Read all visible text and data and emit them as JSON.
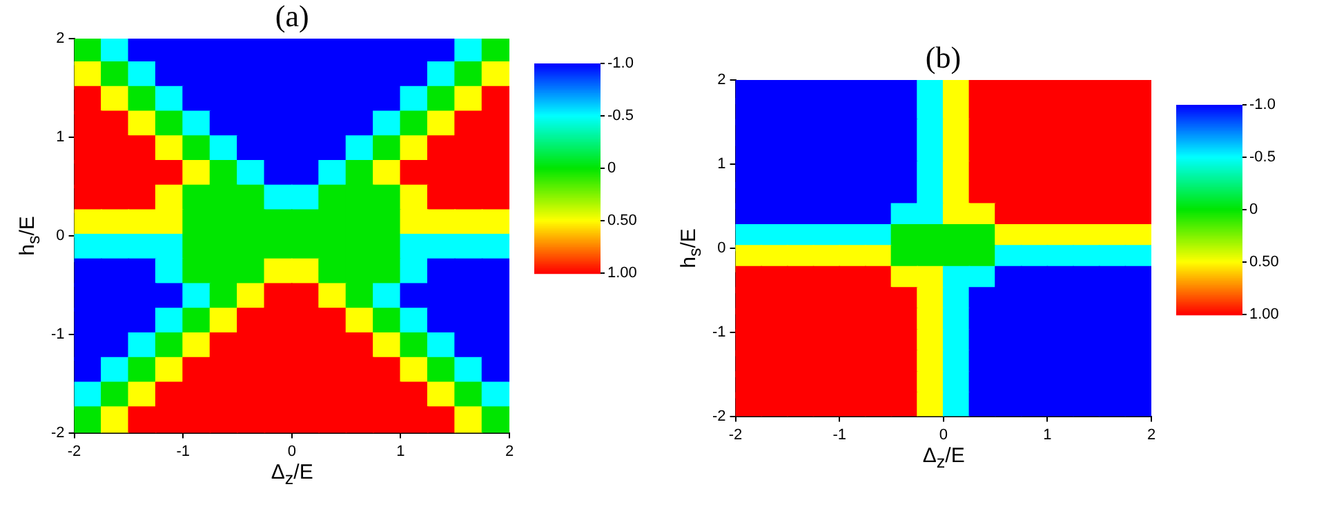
{
  "chart_data": [
    {
      "type": "heatmap",
      "title": "(a)",
      "xlabel": "Δ$_{z}$/E",
      "ylabel": "h$_{s}$/E",
      "x": [
        -1.875,
        -1.625,
        -1.375,
        -1.125,
        -0.875,
        -0.625,
        -0.375,
        -0.125,
        0.125,
        0.375,
        0.625,
        0.875,
        1.125,
        1.375,
        1.625,
        1.875
      ],
      "y": [
        1.875,
        1.625,
        1.375,
        1.125,
        0.875,
        0.625,
        0.375,
        0.125,
        -0.125,
        -0.375,
        -0.625,
        -0.875,
        -1.125,
        -1.375,
        -1.625,
        -1.875
      ],
      "xlim": [
        -2,
        2
      ],
      "ylim": [
        -2,
        2
      ],
      "xticks": [
        -2,
        -1,
        0,
        1,
        2
      ],
      "yticks": [
        -2,
        -1,
        0,
        1,
        2
      ],
      "grid": false,
      "clim": [
        -1,
        1
      ],
      "cticks": [
        {
          "value": -1,
          "label": "-1.0"
        },
        {
          "value": -0.5,
          "label": "-0.5"
        },
        0,
        {
          "value": 0.5,
          "label": "0.50"
        },
        {
          "value": 1,
          "label": "1.00"
        }
      ],
      "cells": [
        [
          0,
          -0.5,
          -1,
          -1,
          -1,
          -1,
          -1,
          -1,
          -1,
          -1,
          -1,
          -1,
          -1,
          -1,
          -0.5,
          0
        ],
        [
          0.5,
          0,
          -0.5,
          -1,
          -1,
          -1,
          -1,
          -1,
          -1,
          -1,
          -1,
          -1,
          -1,
          -0.5,
          0,
          0.5
        ],
        [
          1,
          0.5,
          0,
          -0.5,
          -1,
          -1,
          -1,
          -1,
          -1,
          -1,
          -1,
          -1,
          -0.5,
          0,
          0.5,
          1
        ],
        [
          1,
          1,
          0.5,
          0,
          -0.5,
          -1,
          -1,
          -1,
          -1,
          -1,
          -1,
          -0.5,
          0,
          0.5,
          1,
          1
        ],
        [
          1,
          1,
          1,
          0.5,
          0,
          -0.5,
          -1,
          -1,
          -1,
          -1,
          -0.5,
          0,
          0.5,
          1,
          1,
          1
        ],
        [
          1,
          1,
          1,
          1,
          0.5,
          0,
          -0.5,
          -1,
          -1,
          -0.5,
          0,
          0.5,
          1,
          1,
          1,
          1
        ],
        [
          1,
          1,
          1,
          0.5,
          0,
          0,
          0,
          -0.5,
          -0.5,
          0,
          0,
          0,
          0.5,
          1,
          1,
          1
        ],
        [
          0.5,
          0.5,
          0.5,
          0.5,
          0,
          0,
          0,
          0,
          0,
          0,
          0,
          0,
          0.5,
          0.5,
          0.5,
          0.5
        ],
        [
          -0.5,
          -0.5,
          -0.5,
          -0.5,
          0,
          0,
          0,
          0,
          0,
          0,
          0,
          0,
          -0.5,
          -0.5,
          -0.5,
          -0.5
        ],
        [
          -1,
          -1,
          -1,
          -0.5,
          0,
          0,
          0,
          0.5,
          0.5,
          0,
          0,
          0,
          -0.5,
          -1,
          -1,
          -1
        ],
        [
          -1,
          -1,
          -1,
          -1,
          -0.5,
          0,
          0.5,
          1,
          1,
          0.5,
          0,
          -0.5,
          -1,
          -1,
          -1,
          -1
        ],
        [
          -1,
          -1,
          -1,
          -0.5,
          0,
          0.5,
          1,
          1,
          1,
          1,
          0.5,
          0,
          -0.5,
          -1,
          -1,
          -1
        ],
        [
          -1,
          -1,
          -0.5,
          0,
          0.5,
          1,
          1,
          1,
          1,
          1,
          1,
          0.5,
          0,
          -0.5,
          -1,
          -1
        ],
        [
          -1,
          -0.5,
          0,
          0.5,
          1,
          1,
          1,
          1,
          1,
          1,
          1,
          1,
          0.5,
          0,
          -0.5,
          -1
        ],
        [
          -0.5,
          0,
          0.5,
          1,
          1,
          1,
          1,
          1,
          1,
          1,
          1,
          1,
          1,
          0.5,
          0,
          -0.5
        ],
        [
          0,
          0.5,
          1,
          1,
          1,
          1,
          1,
          1,
          1,
          1,
          1,
          1,
          1,
          1,
          0.5,
          0
        ]
      ]
    },
    {
      "type": "heatmap",
      "title": "(b)",
      "xlabel": "Δ$_{z}$/E",
      "ylabel": "h$_{s}$/E",
      "x": [
        -1.875,
        -1.625,
        -1.375,
        -1.125,
        -0.875,
        -0.625,
        -0.375,
        -0.125,
        0.125,
        0.375,
        0.625,
        0.875,
        1.125,
        1.375,
        1.625,
        1.875
      ],
      "y": [
        1.875,
        1.625,
        1.375,
        1.125,
        0.875,
        0.625,
        0.375,
        0.125,
        -0.125,
        -0.375,
        -0.625,
        -0.875,
        -1.125,
        -1.375,
        -1.625,
        -1.875
      ],
      "xlim": [
        -2,
        2
      ],
      "ylim": [
        -2,
        2
      ],
      "xticks": [
        -2,
        -1,
        0,
        1,
        2
      ],
      "yticks": [
        -2,
        -1,
        0,
        1,
        2
      ],
      "grid": false,
      "clim": [
        -1,
        1
      ],
      "cticks": [
        {
          "value": -1,
          "label": "-1.0"
        },
        {
          "value": -0.5,
          "label": "-0.5"
        },
        0,
        {
          "value": 0.5,
          "label": "0.50"
        },
        {
          "value": 1,
          "label": "1.00"
        }
      ],
      "cells": [
        [
          -1,
          -1,
          -1,
          -1,
          -1,
          -1,
          -1,
          -0.5,
          0.5,
          1,
          1,
          1,
          1,
          1,
          1,
          1
        ],
        [
          -1,
          -1,
          -1,
          -1,
          -1,
          -1,
          -1,
          -0.5,
          0.5,
          1,
          1,
          1,
          1,
          1,
          1,
          1
        ],
        [
          -1,
          -1,
          -1,
          -1,
          -1,
          -1,
          -1,
          -0.5,
          0.5,
          1,
          1,
          1,
          1,
          1,
          1,
          1
        ],
        [
          -1,
          -1,
          -1,
          -1,
          -1,
          -1,
          -1,
          -0.5,
          0.5,
          1,
          1,
          1,
          1,
          1,
          1,
          1
        ],
        [
          -1,
          -1,
          -1,
          -1,
          -1,
          -1,
          -1,
          -0.5,
          0.5,
          1,
          1,
          1,
          1,
          1,
          1,
          1
        ],
        [
          -1,
          -1,
          -1,
          -1,
          -1,
          -1,
          -1,
          -0.5,
          0.5,
          1,
          1,
          1,
          1,
          1,
          1,
          1
        ],
        [
          -1,
          -1,
          -1,
          -1,
          -1,
          -1,
          -0.5,
          -0.5,
          0.5,
          0.5,
          1,
          1,
          1,
          1,
          1,
          1
        ],
        [
          -0.5,
          -0.5,
          -0.5,
          -0.5,
          -0.5,
          -0.5,
          0,
          0,
          0,
          0,
          0.5,
          0.5,
          0.5,
          0.5,
          0.5,
          0.5
        ],
        [
          0.5,
          0.5,
          0.5,
          0.5,
          0.5,
          0.5,
          0,
          0,
          0,
          0,
          -0.5,
          -0.5,
          -0.5,
          -0.5,
          -0.5,
          -0.5
        ],
        [
          1,
          1,
          1,
          1,
          1,
          1,
          0.5,
          0.5,
          -0.5,
          -0.5,
          -1,
          -1,
          -1,
          -1,
          -1,
          -1
        ],
        [
          1,
          1,
          1,
          1,
          1,
          1,
          1,
          0.5,
          -0.5,
          -1,
          -1,
          -1,
          -1,
          -1,
          -1,
          -1
        ],
        [
          1,
          1,
          1,
          1,
          1,
          1,
          1,
          0.5,
          -0.5,
          -1,
          -1,
          -1,
          -1,
          -1,
          -1,
          -1
        ],
        [
          1,
          1,
          1,
          1,
          1,
          1,
          1,
          0.5,
          -0.5,
          -1,
          -1,
          -1,
          -1,
          -1,
          -1,
          -1
        ],
        [
          1,
          1,
          1,
          1,
          1,
          1,
          1,
          0.5,
          -0.5,
          -1,
          -1,
          -1,
          -1,
          -1,
          -1,
          -1
        ],
        [
          1,
          1,
          1,
          1,
          1,
          1,
          1,
          0.5,
          -0.5,
          -1,
          -1,
          -1,
          -1,
          -1,
          -1,
          -1
        ],
        [
          1,
          1,
          1,
          1,
          1,
          1,
          1,
          0.5,
          -0.5,
          -1,
          -1,
          -1,
          -1,
          -1,
          -1,
          -1
        ]
      ]
    }
  ]
}
